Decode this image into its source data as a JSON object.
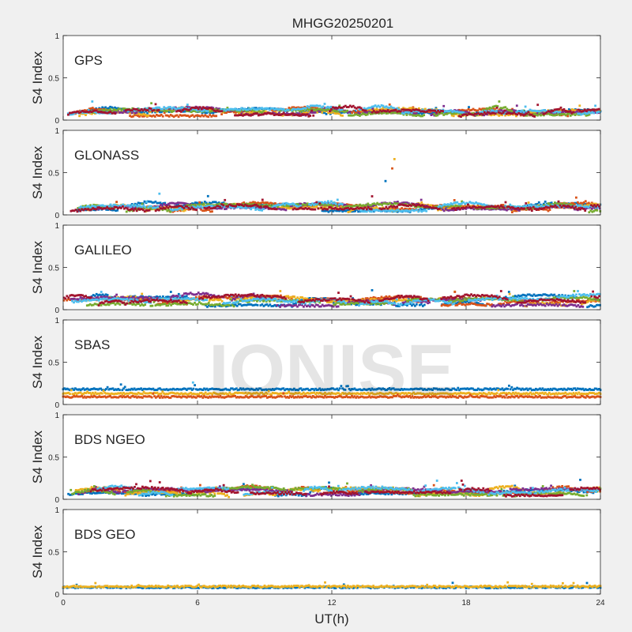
{
  "figure": {
    "title": "MHGG20250201",
    "xlabel": "UT(h)",
    "watermark": "IONISE",
    "background_color": "#f0f0f0",
    "axes_color": "#ffffff"
  },
  "palette": [
    "#0072bd",
    "#d95319",
    "#edb120",
    "#7e2f8e",
    "#77ac30",
    "#4dbeee",
    "#a2142f"
  ],
  "chart_data": [
    {
      "type": "scatter",
      "panel": "GPS",
      "ylabel": "S4 Index",
      "xlim": [
        0,
        24
      ],
      "ylim": [
        0,
        1
      ],
      "xticks": [
        0,
        6,
        12,
        18,
        24
      ],
      "yticks": [
        0,
        0.5,
        1
      ],
      "grid": false,
      "series_profile": {
        "series_count": 7,
        "baseline_range": [
          0.05,
          0.12
        ],
        "max_sporadic": 0.23,
        "peaks": [
          {
            "x": 1.3,
            "y": 0.22
          },
          {
            "x": 21.2,
            "y": 0.18
          }
        ]
      }
    },
    {
      "type": "scatter",
      "panel": "GLONASS",
      "ylabel": "S4 Index",
      "xlim": [
        0,
        24
      ],
      "ylim": [
        0,
        1
      ],
      "xticks": [
        0,
        6,
        12,
        18,
        24
      ],
      "yticks": [
        0,
        0.5,
        1
      ],
      "grid": false,
      "series_profile": {
        "series_count": 7,
        "baseline_range": [
          0.04,
          0.12
        ],
        "max_sporadic": 0.25,
        "peaks": [
          {
            "x": 4.3,
            "y": 0.25
          },
          {
            "x": 13.8,
            "y": 0.22
          },
          {
            "x": 14.4,
            "y": 0.4
          },
          {
            "x": 14.7,
            "y": 0.55
          },
          {
            "x": 14.8,
            "y": 0.66
          }
        ]
      }
    },
    {
      "type": "scatter",
      "panel": "GALILEO",
      "ylabel": "S4 Index",
      "xlim": [
        0,
        24
      ],
      "ylim": [
        0,
        1
      ],
      "xticks": [
        0,
        6,
        12,
        18,
        24
      ],
      "yticks": [
        0,
        0.5,
        1
      ],
      "grid": false,
      "series_profile": {
        "series_count": 7,
        "baseline_range": [
          0.04,
          0.15
        ],
        "max_sporadic": 0.22,
        "peaks": [
          {
            "x": 1.7,
            "y": 0.21
          },
          {
            "x": 12.3,
            "y": 0.2
          },
          {
            "x": 13.8,
            "y": 0.23
          },
          {
            "x": 17.5,
            "y": 0.21
          }
        ]
      }
    },
    {
      "type": "scatter",
      "panel": "SBAS",
      "ylabel": "S4 Index",
      "xlim": [
        0,
        24
      ],
      "ylim": [
        0,
        1
      ],
      "xticks": [
        0,
        6,
        12,
        18,
        24
      ],
      "yticks": [
        0,
        0.5,
        1
      ],
      "grid": false,
      "series_profile": {
        "series_count": 3,
        "series_colors": [
          "#0072bd",
          "#edb120",
          "#d95319"
        ],
        "levels": [
          0.18,
          0.13,
          0.09
        ],
        "max_sporadic": 0.26,
        "peaks": [
          {
            "x": 5.8,
            "y": 0.26
          }
        ]
      }
    },
    {
      "type": "scatter",
      "panel": "BDS NGEO",
      "ylabel": "S4 Index",
      "xlim": [
        0,
        24
      ],
      "ylim": [
        0,
        1
      ],
      "xticks": [
        0,
        6,
        12,
        18,
        24
      ],
      "yticks": [
        0,
        0.5,
        1
      ],
      "grid": false,
      "series_profile": {
        "series_count": 7,
        "baseline_range": [
          0.03,
          0.12
        ],
        "max_sporadic": 0.24,
        "peaks": [
          {
            "x": 16.7,
            "y": 0.22
          },
          {
            "x": 17.8,
            "y": 0.22
          },
          {
            "x": 23.1,
            "y": 0.23
          }
        ]
      }
    },
    {
      "type": "scatter",
      "panel": "BDS GEO",
      "ylabel": "S4 Index",
      "xlim": [
        0,
        24
      ],
      "ylim": [
        0,
        1
      ],
      "xticks": [
        0,
        6,
        12,
        18,
        24
      ],
      "yticks": [
        0,
        0.5,
        1
      ],
      "grid": false,
      "series_profile": {
        "series_count": 2,
        "series_colors": [
          "#0072bd",
          "#edb120"
        ],
        "levels": [
          0.08,
          0.09
        ]
      }
    }
  ]
}
